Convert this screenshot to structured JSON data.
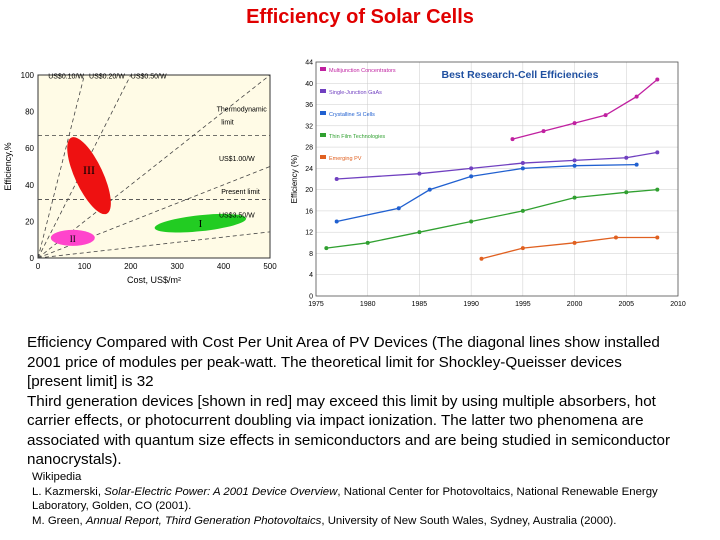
{
  "slide": {
    "title": "Efficiency of Solar Cells"
  },
  "left_chart": {
    "chart_data": {
      "type": "scatter",
      "xlabel": "Cost, US$/m²",
      "ylabel": "Efficiency,%",
      "x_ticks": [
        "0",
        "100",
        "200",
        "300",
        "400",
        "500"
      ],
      "y_ticks": [
        "0",
        "20",
        "40",
        "60",
        "80",
        "100"
      ],
      "xlim": [
        0,
        500
      ],
      "ylim": [
        0,
        100
      ],
      "price_lines": [
        "US$0.10/W",
        "US$0.20/W",
        "US$0.50/W",
        "US$1.00/W",
        "US$3.50/W"
      ],
      "limits": [
        "Thermodynamic limit",
        "Present limit"
      ],
      "regions": [
        {
          "label": "I",
          "color": "#22cc22"
        },
        {
          "label": "II",
          "color": "#ff44cc"
        },
        {
          "label": "III",
          "color": "#ee1111"
        }
      ]
    }
  },
  "right_chart": {
    "chart_data": {
      "type": "line",
      "title": "Best Research-Cell Efficiencies",
      "ylabel": "Efficiency (%)",
      "xlim": [
        1975,
        2010
      ],
      "ylim": [
        0,
        44
      ],
      "x_ticks": [
        "1975",
        "1980",
        "1985",
        "1990",
        "1995",
        "2000",
        "2005",
        "2010"
      ],
      "y_ticks": [
        "0",
        "4",
        "8",
        "12",
        "16",
        "20",
        "24",
        "28",
        "32",
        "36",
        "40",
        "44"
      ],
      "series": [
        {
          "name": "Multijunction Concentrators",
          "color": "#c020a0",
          "x": [
            1994,
            1997,
            2000,
            2003,
            2006,
            2008
          ],
          "y": [
            29.5,
            31,
            32.5,
            34,
            37.5,
            40.7
          ]
        },
        {
          "name": "Single-Junction GaAs",
          "color": "#7040c0",
          "x": [
            1977,
            1985,
            1990,
            1995,
            2000,
            2005,
            2008
          ],
          "y": [
            22,
            23,
            24,
            25,
            25.5,
            26,
            27
          ]
        },
        {
          "name": "Crystalline Si Cells",
          "color": "#2060d0",
          "x": [
            1977,
            1983,
            1986,
            1990,
            1995,
            2000,
            2006
          ],
          "y": [
            14,
            16.5,
            20,
            22.5,
            24,
            24.5,
            24.7
          ]
        },
        {
          "name": "Thin Film Technologies",
          "color": "#30a030",
          "x": [
            1976,
            1980,
            1985,
            1990,
            1995,
            2000,
            2005,
            2008
          ],
          "y": [
            9,
            10,
            12,
            14,
            16,
            18.5,
            19.5,
            20
          ]
        },
        {
          "name": "Emerging PV",
          "color": "#e06020",
          "x": [
            1991,
            1995,
            2000,
            2004,
            2008
          ],
          "y": [
            7,
            9,
            10,
            11,
            11
          ]
        }
      ]
    }
  },
  "caption": {
    "lines": [
      "Efficiency Compared with Cost Per Unit Area of PV Devices (The diagonal lines show installed",
      "2001 price of modules per peak-watt. The theoretical limit for Shockley-Queisser devices",
      "[present limit] is 32",
      "Third generation devices [shown in red] may exceed this limit by using multiple absorbers, hot",
      "carrier effects, or photocurrent doubling via impact ionization. The latter two phenomena are",
      "associated with quantum size effects in semiconductors and are being studied in semiconductor",
      "nanocrystals)."
    ]
  },
  "references": {
    "source": "Wikipedia",
    "ref1_authors": "L. Kazmerski, ",
    "ref1_title": "Solar-Electric Power: A 2001 Device Overview",
    "ref1_rest": ", National Center for Photovoltaics, National Renewable Energy",
    "ref1_cont": "Laboratory, Golden, CO (2001).",
    "ref2_authors": "M. Green, ",
    "ref2_title": "Annual Report, Third Generation Photovoltaics",
    "ref2_rest": ", University of New South Wales, Sydney, Australia (2000)."
  }
}
